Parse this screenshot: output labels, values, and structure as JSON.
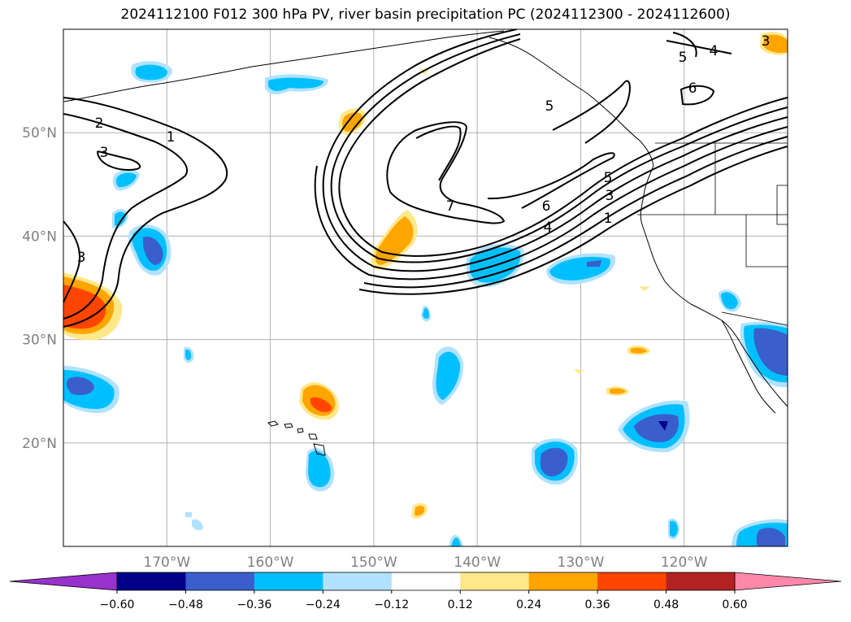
{
  "title": "2024112100 F012 300 hPa PV, river basin precipitation PC (2024112300 - 2024112600)",
  "map": {
    "lon_range": [
      -180,
      -110
    ],
    "lat_range": [
      10,
      60
    ],
    "gridlines": true,
    "lon_ticks": [
      {
        "value": -170,
        "label": "170°W"
      },
      {
        "value": -160,
        "label": "160°W"
      },
      {
        "value": -150,
        "label": "150°W"
      },
      {
        "value": -140,
        "label": "140°W"
      },
      {
        "value": -130,
        "label": "130°W"
      },
      {
        "value": -120,
        "label": "120°W"
      }
    ],
    "lat_ticks": [
      {
        "value": 20,
        "label": "20°N"
      },
      {
        "value": 30,
        "label": "30°N"
      },
      {
        "value": 40,
        "label": "40°N"
      },
      {
        "value": 50,
        "label": "50°N"
      }
    ],
    "pv_contour_labels": [
      "1",
      "2",
      "3",
      "3",
      "7",
      "6",
      "4",
      "5",
      "3",
      "1",
      "5",
      "4",
      "6",
      "5",
      "3"
    ]
  },
  "colorbar": {
    "extend": "both",
    "colors": [
      "#9932cc",
      "#00008b",
      "#3a5fcd",
      "#00bfff",
      "#b0e2ff",
      "#ffffff",
      "#ffe88a",
      "#ffa500",
      "#ff4500",
      "#b22222",
      "#ff88aa"
    ],
    "tick_labels": [
      "−0.60",
      "−0.48",
      "−0.36",
      "−0.24",
      "−0.12",
      "0.12",
      "0.24",
      "0.36",
      "0.48",
      "0.60"
    ]
  }
}
